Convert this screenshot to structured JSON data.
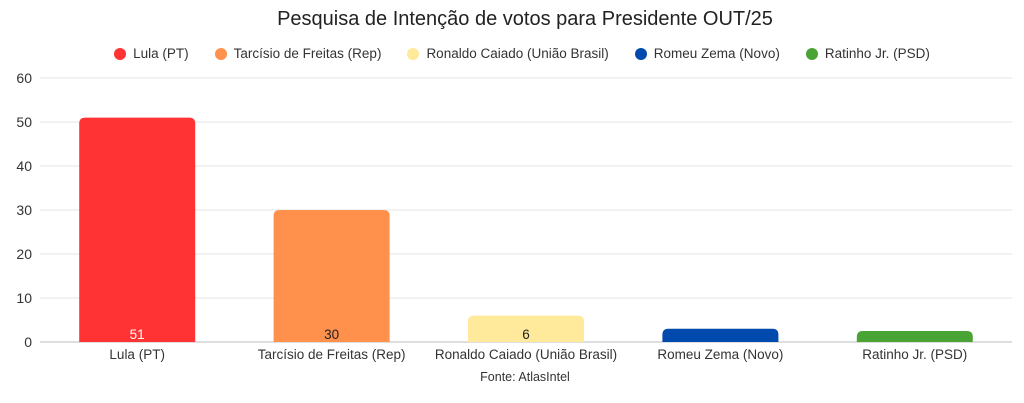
{
  "chart_data": {
    "type": "bar",
    "title": "Pesquisa de Intenção de votos para Presidente OUT/25",
    "categories": [
      "Lula (PT)",
      "Tarcísio de Freitas (Rep)",
      "Ronaldo Caiado (União Brasil)",
      "Romeu Zema (Novo)",
      "Ratinho Jr. (PSD)"
    ],
    "values": [
      51,
      30,
      6,
      3,
      2.5
    ],
    "data_labels": [
      "51",
      "30",
      "6",
      "",
      ""
    ],
    "colors": [
      "#ff3333",
      "#ff914d",
      "#ffe99a",
      "#004aad",
      "#4aa335"
    ],
    "legend": [
      "Lula (PT)",
      "Tarcísio de Freitas (Rep)",
      "Ronaldo Caiado (União Brasil)",
      "Romeu Zema (Novo)",
      "Ratinho Jr. (PSD)"
    ],
    "yticks": [
      "0",
      "10",
      "20",
      "30",
      "40",
      "50",
      "60"
    ],
    "ylim": [
      0,
      60
    ],
    "xlabel": "",
    "ylabel": "",
    "grid": true,
    "legend_position": "top-center",
    "source": "Fonte: AtlasIntel"
  }
}
